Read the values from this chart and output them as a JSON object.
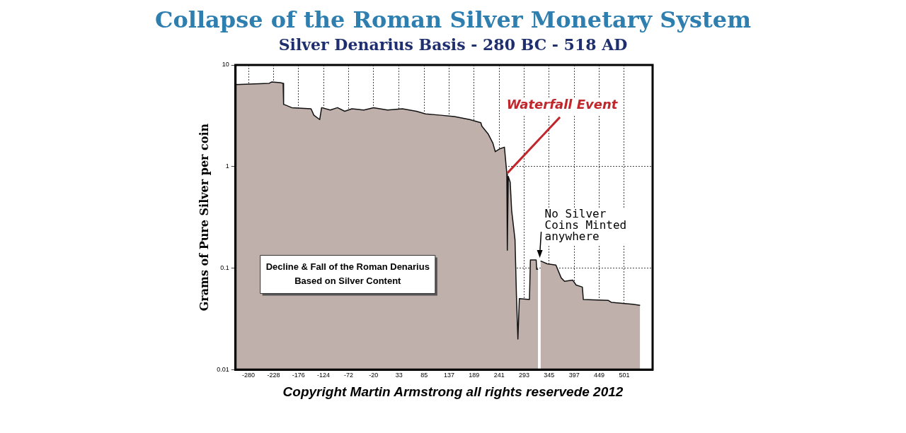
{
  "chart_data": {
    "type": "area",
    "title": "Collapse of the Roman Silver Monetary System",
    "subtitle": "Silver Denarius Basis - 280 BC - 518 AD",
    "ylabel": "Grams of Pure Silver per coin",
    "series": [
      {
        "color": "#bfb0ac",
        "x": [
          -307,
          -237,
          -232,
          -214,
          -208,
          -207,
          -190,
          -170,
          -150,
          -144,
          -132,
          -128,
          -110,
          -95,
          -80,
          -65,
          -40,
          -20,
          9,
          40,
          69,
          88,
          120,
          148,
          180,
          203,
          205,
          218,
          228,
          233,
          243,
          252,
          257,
          258,
          260,
          264,
          267,
          274,
          277,
          280,
          283,
          304,
          306,
          318,
          319,
          322,
          324,
          327,
          328,
          341,
          359,
          370,
          377,
          394,
          401,
          414,
          416,
          468,
          474,
          519,
          534
        ],
        "values": [
          6.4,
          6.6,
          6.8,
          6.7,
          6.6,
          4.1,
          3.8,
          3.75,
          3.7,
          3.2,
          2.9,
          3.8,
          3.6,
          3.8,
          3.5,
          3.7,
          3.6,
          3.8,
          3.6,
          3.7,
          3.5,
          3.3,
          3.2,
          3.1,
          2.9,
          2.7,
          2.5,
          2.1,
          1.7,
          1.4,
          1.5,
          1.55,
          0.85,
          0.15,
          0.8,
          0.7,
          0.37,
          0.19,
          0.053,
          0.02,
          0.05,
          0.049,
          0.12,
          0.12,
          0.097,
          0.097,
          null,
          0.117,
          0.117,
          0.11,
          0.107,
          0.08,
          0.074,
          0.076,
          0.068,
          0.065,
          0.049,
          0.048,
          0.046,
          0.044,
          0.043
        ]
      }
    ],
    "xlim": [
      -307,
      560
    ],
    "xticks": [
      -280,
      -228,
      -176,
      -124,
      -72,
      -20,
      33,
      85,
      137,
      189,
      241,
      293,
      345,
      397,
      449,
      501
    ],
    "ylim": [
      0.01,
      10
    ],
    "yticks": [
      0.01,
      0.1,
      1,
      10
    ],
    "log": "y",
    "grid": true,
    "legend": false,
    "annotations": [
      "Decline & Fall of the Roman Denarius\nBased on Silver Content",
      {
        "text": "Waterfall Event",
        "x": 257,
        "y": 0.85
      },
      {
        "text": "No Silver\nCoins Minted\nanywhere",
        "x": 324,
        "y": 0.12
      },
      "Copyright Martin Armstrong all rights reservede 2012"
    ]
  }
}
